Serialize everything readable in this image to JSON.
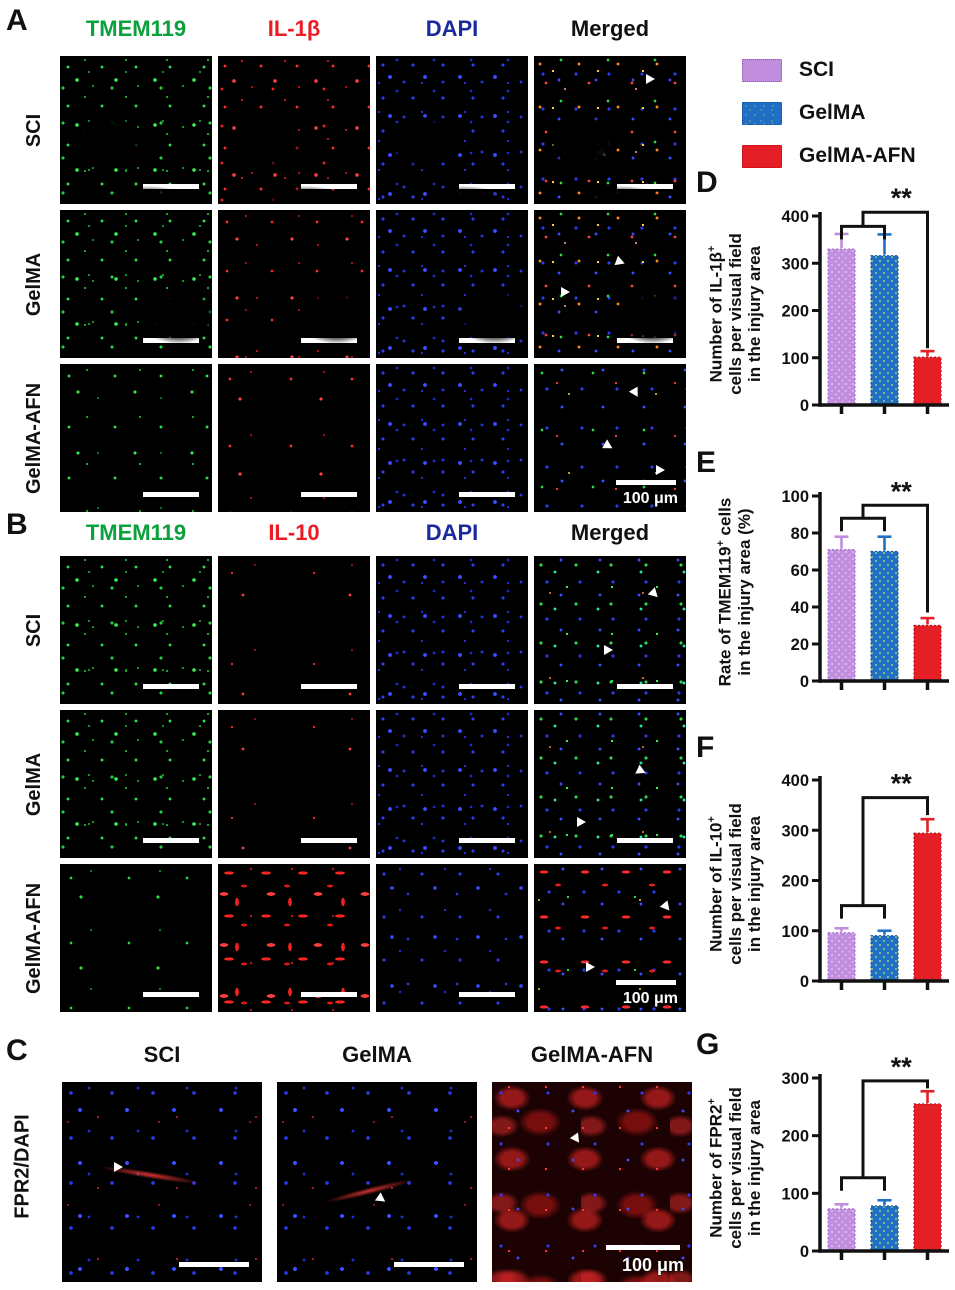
{
  "figure": {
    "type": "multi-panel immunofluorescence figure with quantification bar charts",
    "scale_bar_text": "100 μm"
  },
  "panels": {
    "A": {
      "label": "A",
      "col_headers": [
        {
          "text": "TMEM119",
          "color": "#0aa03c"
        },
        {
          "text": "IL-1β",
          "color": "#ed1c24"
        },
        {
          "text": "DAPI",
          "color": "#1c2a9c"
        },
        {
          "text": "Merged",
          "color": "#111111"
        }
      ],
      "row_labels": [
        "SCI",
        "GelMA",
        "GelMA-AFN"
      ],
      "scale_text": "100 μm"
    },
    "B": {
      "label": "B",
      "col_headers": [
        {
          "text": "TMEM119",
          "color": "#0aa03c"
        },
        {
          "text": "IL-10",
          "color": "#ed1c24"
        },
        {
          "text": "DAPI",
          "color": "#1c2a9c"
        },
        {
          "text": "Merged",
          "color": "#111111"
        }
      ],
      "row_labels": [
        "SCI",
        "GelMA",
        "GelMA-AFN"
      ],
      "scale_text": "100 μm"
    },
    "C": {
      "label": "C",
      "col_headers": [
        "SCI",
        "GelMA",
        "GelMA-AFN"
      ],
      "row_label_parts": [
        {
          "text": "FPR2",
          "color": "#ed1c24"
        },
        {
          "text": "/",
          "color": "#111111"
        },
        {
          "text": "DAPI",
          "color": "#1c2a9c"
        }
      ],
      "scale_text": "100 μm"
    }
  },
  "legend": {
    "position": "top-right",
    "items": [
      {
        "label": "SCI",
        "color": "#c18ede"
      },
      {
        "label": "GelMA",
        "color": "#1f6fc5"
      },
      {
        "label": "GelMA-AFN",
        "color": "#e41f25"
      }
    ]
  },
  "chart_data": [
    {
      "id": "D",
      "type": "bar",
      "title": "Number of IL-1β+ cells per visual field in the injury area",
      "ylabel_lines": [
        "Number of IL-1β^+",
        "cells per visual field",
        "in the injury area"
      ],
      "categories": [
        "SCI",
        "GelMA",
        "GelMA-AFN"
      ],
      "values": [
        330,
        316,
        101
      ],
      "errors": [
        32,
        45,
        13
      ],
      "ylim": [
        0,
        400
      ],
      "yticks": [
        0,
        100,
        200,
        300,
        400
      ],
      "xlabel": "",
      "grid": false,
      "significance": {
        "label": "**",
        "pair_level": 378,
        "top_level": 408,
        "attach_level": 120
      }
    },
    {
      "id": "E",
      "type": "bar",
      "title": "Rate of TMEM119+ cells in the injury area (%)",
      "ylabel_lines": [
        "Rate of TMEM119^+ cells",
        "in the injury area (%)"
      ],
      "categories": [
        "SCI",
        "GelMA",
        "GelMA-AFN"
      ],
      "values": [
        71,
        70,
        30
      ],
      "errors": [
        7,
        8,
        4
      ],
      "ylim": [
        0,
        100
      ],
      "yticks": [
        0,
        20,
        40,
        60,
        80,
        100
      ],
      "xlabel": "",
      "grid": false,
      "significance": {
        "label": "**",
        "pair_level": 88,
        "top_level": 95,
        "attach_level": 37
      }
    },
    {
      "id": "F",
      "type": "bar",
      "title": "Number of IL-10+ cells per visual field in the injury area",
      "ylabel_lines": [
        "Number of IL-10^+",
        "cells per visual field",
        "in the injury area"
      ],
      "categories": [
        "SCI",
        "GelMA",
        "GelMA-AFN"
      ],
      "values": [
        96,
        90,
        294
      ],
      "errors": [
        9,
        10,
        28
      ],
      "ylim": [
        0,
        400
      ],
      "yticks": [
        0,
        100,
        200,
        300,
        400
      ],
      "xlabel": "",
      "grid": false,
      "significance": {
        "label": "**",
        "pair_level": 150,
        "top_level": 365,
        "attach_level": 330
      }
    },
    {
      "id": "G",
      "type": "bar",
      "title": "Number of FPR2+ cells per visual field in the injury area",
      "ylabel_lines": [
        "Number of FPR2^+",
        "cells per visual field",
        "in the injury area"
      ],
      "categories": [
        "SCI",
        "GelMA",
        "GelMA-AFN"
      ],
      "values": [
        73,
        78,
        255
      ],
      "errors": [
        8,
        10,
        22
      ],
      "ylim": [
        0,
        300
      ],
      "yticks": [
        0,
        100,
        200,
        300
      ],
      "xlabel": "",
      "grid": false,
      "significance": {
        "label": "**",
        "pair_level": 127,
        "top_level": 295,
        "attach_level": 282
      }
    }
  ]
}
